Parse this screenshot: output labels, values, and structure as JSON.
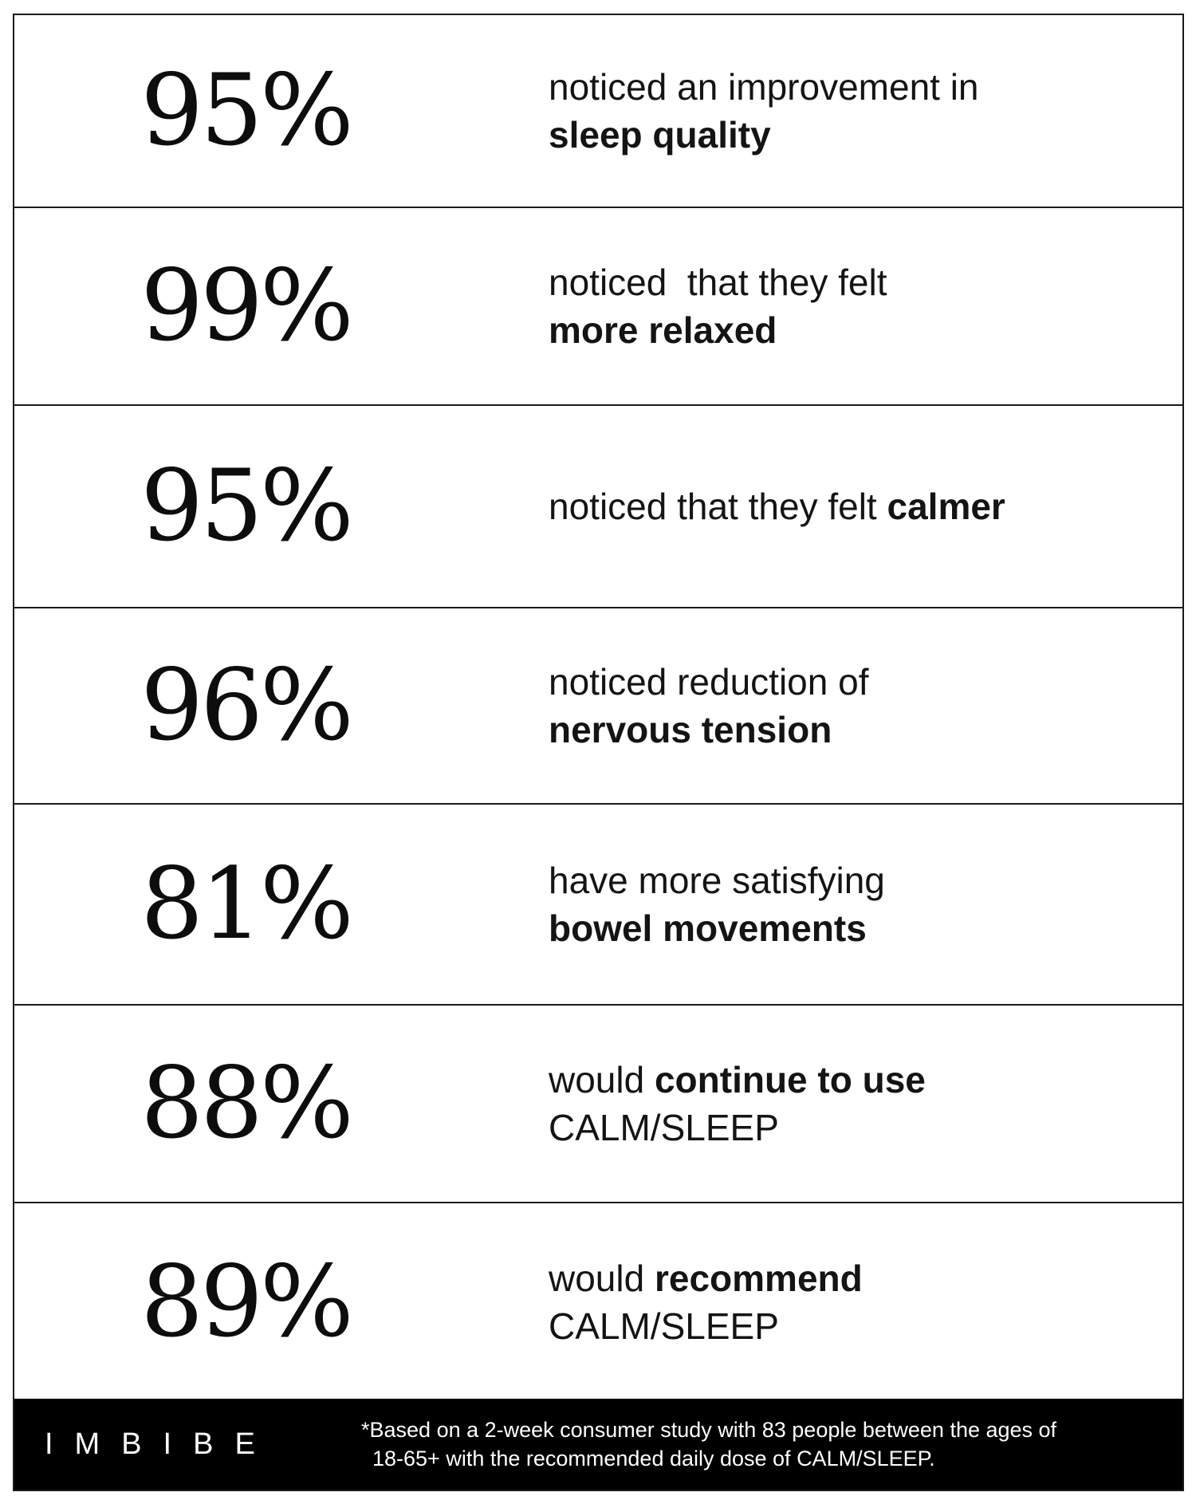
{
  "stats": [
    {
      "value": "95%",
      "line1": "noticed an improvement in",
      "line2": "sleep quality"
    },
    {
      "value": "99%",
      "line1": "noticed  that they felt",
      "line2": "more relaxed"
    },
    {
      "value": "95%",
      "line1_light": "noticed that they felt ",
      "line1_bold": "calmer"
    },
    {
      "value": "96%",
      "line1": "noticed reduction of",
      "line2": "nervous tension"
    },
    {
      "value": "81%",
      "line1": "have more satisfying",
      "line2": "bowel movements"
    },
    {
      "value": "88%",
      "line1_light": "would ",
      "line1_bold": "continue to use",
      "line2": "CALM/SLEEP"
    },
    {
      "value": "89%",
      "line1_light": "would ",
      "line1_bold": "recommend",
      "line2": "CALM/SLEEP"
    }
  ],
  "footer": {
    "brand": "IMBIBE",
    "footnote_line1": "*Based on a 2-week consumer study with 83 people between the ages of",
    "footnote_line2": "18-65+ with the recommended daily dose of CALM/SLEEP."
  },
  "colors": {
    "text": "#111111",
    "border": "#1a1a1a",
    "footer_bg": "#000000",
    "footer_text": "#ffffff"
  }
}
